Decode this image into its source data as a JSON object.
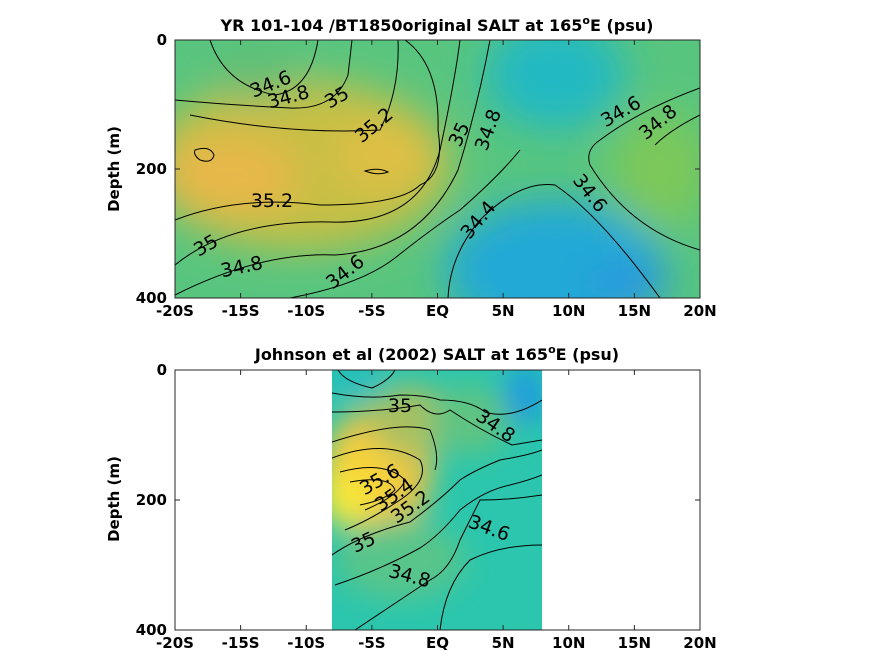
{
  "chart_data": [
    {
      "type": "heatmap",
      "title": "YR 101-104 /BT1850original SALT at 165",
      "title_sup": "o",
      "title_tail": "E (psu)",
      "ylabel": "Depth (m)",
      "x_ticks": [
        "-20S",
        "-15S",
        "-10S",
        "-5S",
        "EQ",
        "5N",
        "10N",
        "15N",
        "20N"
      ],
      "y_ticks": [
        "0",
        "200",
        "400"
      ],
      "xlim": [
        -20,
        20
      ],
      "ylim": [
        0,
        400
      ],
      "x_reversed": false,
      "y_reversed": true,
      "colors": {
        "low": "#2196e0",
        "mid": "#3cc9a4",
        "high": "#f2d22a"
      },
      "contour_labels": [
        "34.6",
        "34.8",
        "35",
        "35.2",
        "35",
        "34.8",
        "34.6",
        "34.8",
        "35.2",
        "35",
        "34.8",
        "34.6",
        "34.4",
        "34.6"
      ]
    },
    {
      "type": "heatmap",
      "title": "Johnson et al (2002) SALT at 165",
      "title_sup": "o",
      "title_tail": "E (psu)",
      "ylabel": "Depth (m)",
      "x_ticks": [
        "-20S",
        "-15S",
        "-10S",
        "-5S",
        "EQ",
        "5N",
        "10N",
        "15N",
        "20N"
      ],
      "y_ticks": [
        "0",
        "200",
        "400"
      ],
      "xlim": [
        -20,
        20
      ],
      "ylim": [
        0,
        400
      ],
      "x_reversed": false,
      "y_reversed": true,
      "data_extent_x": [
        -8,
        8
      ],
      "colors": {
        "low": "#2196e0",
        "mid": "#3cc9a4",
        "high": "#f2d22a"
      },
      "contour_labels": [
        "35",
        "34.8",
        "35.6",
        "35.4",
        "35.2",
        "35",
        "34.6",
        "34.8"
      ]
    }
  ]
}
